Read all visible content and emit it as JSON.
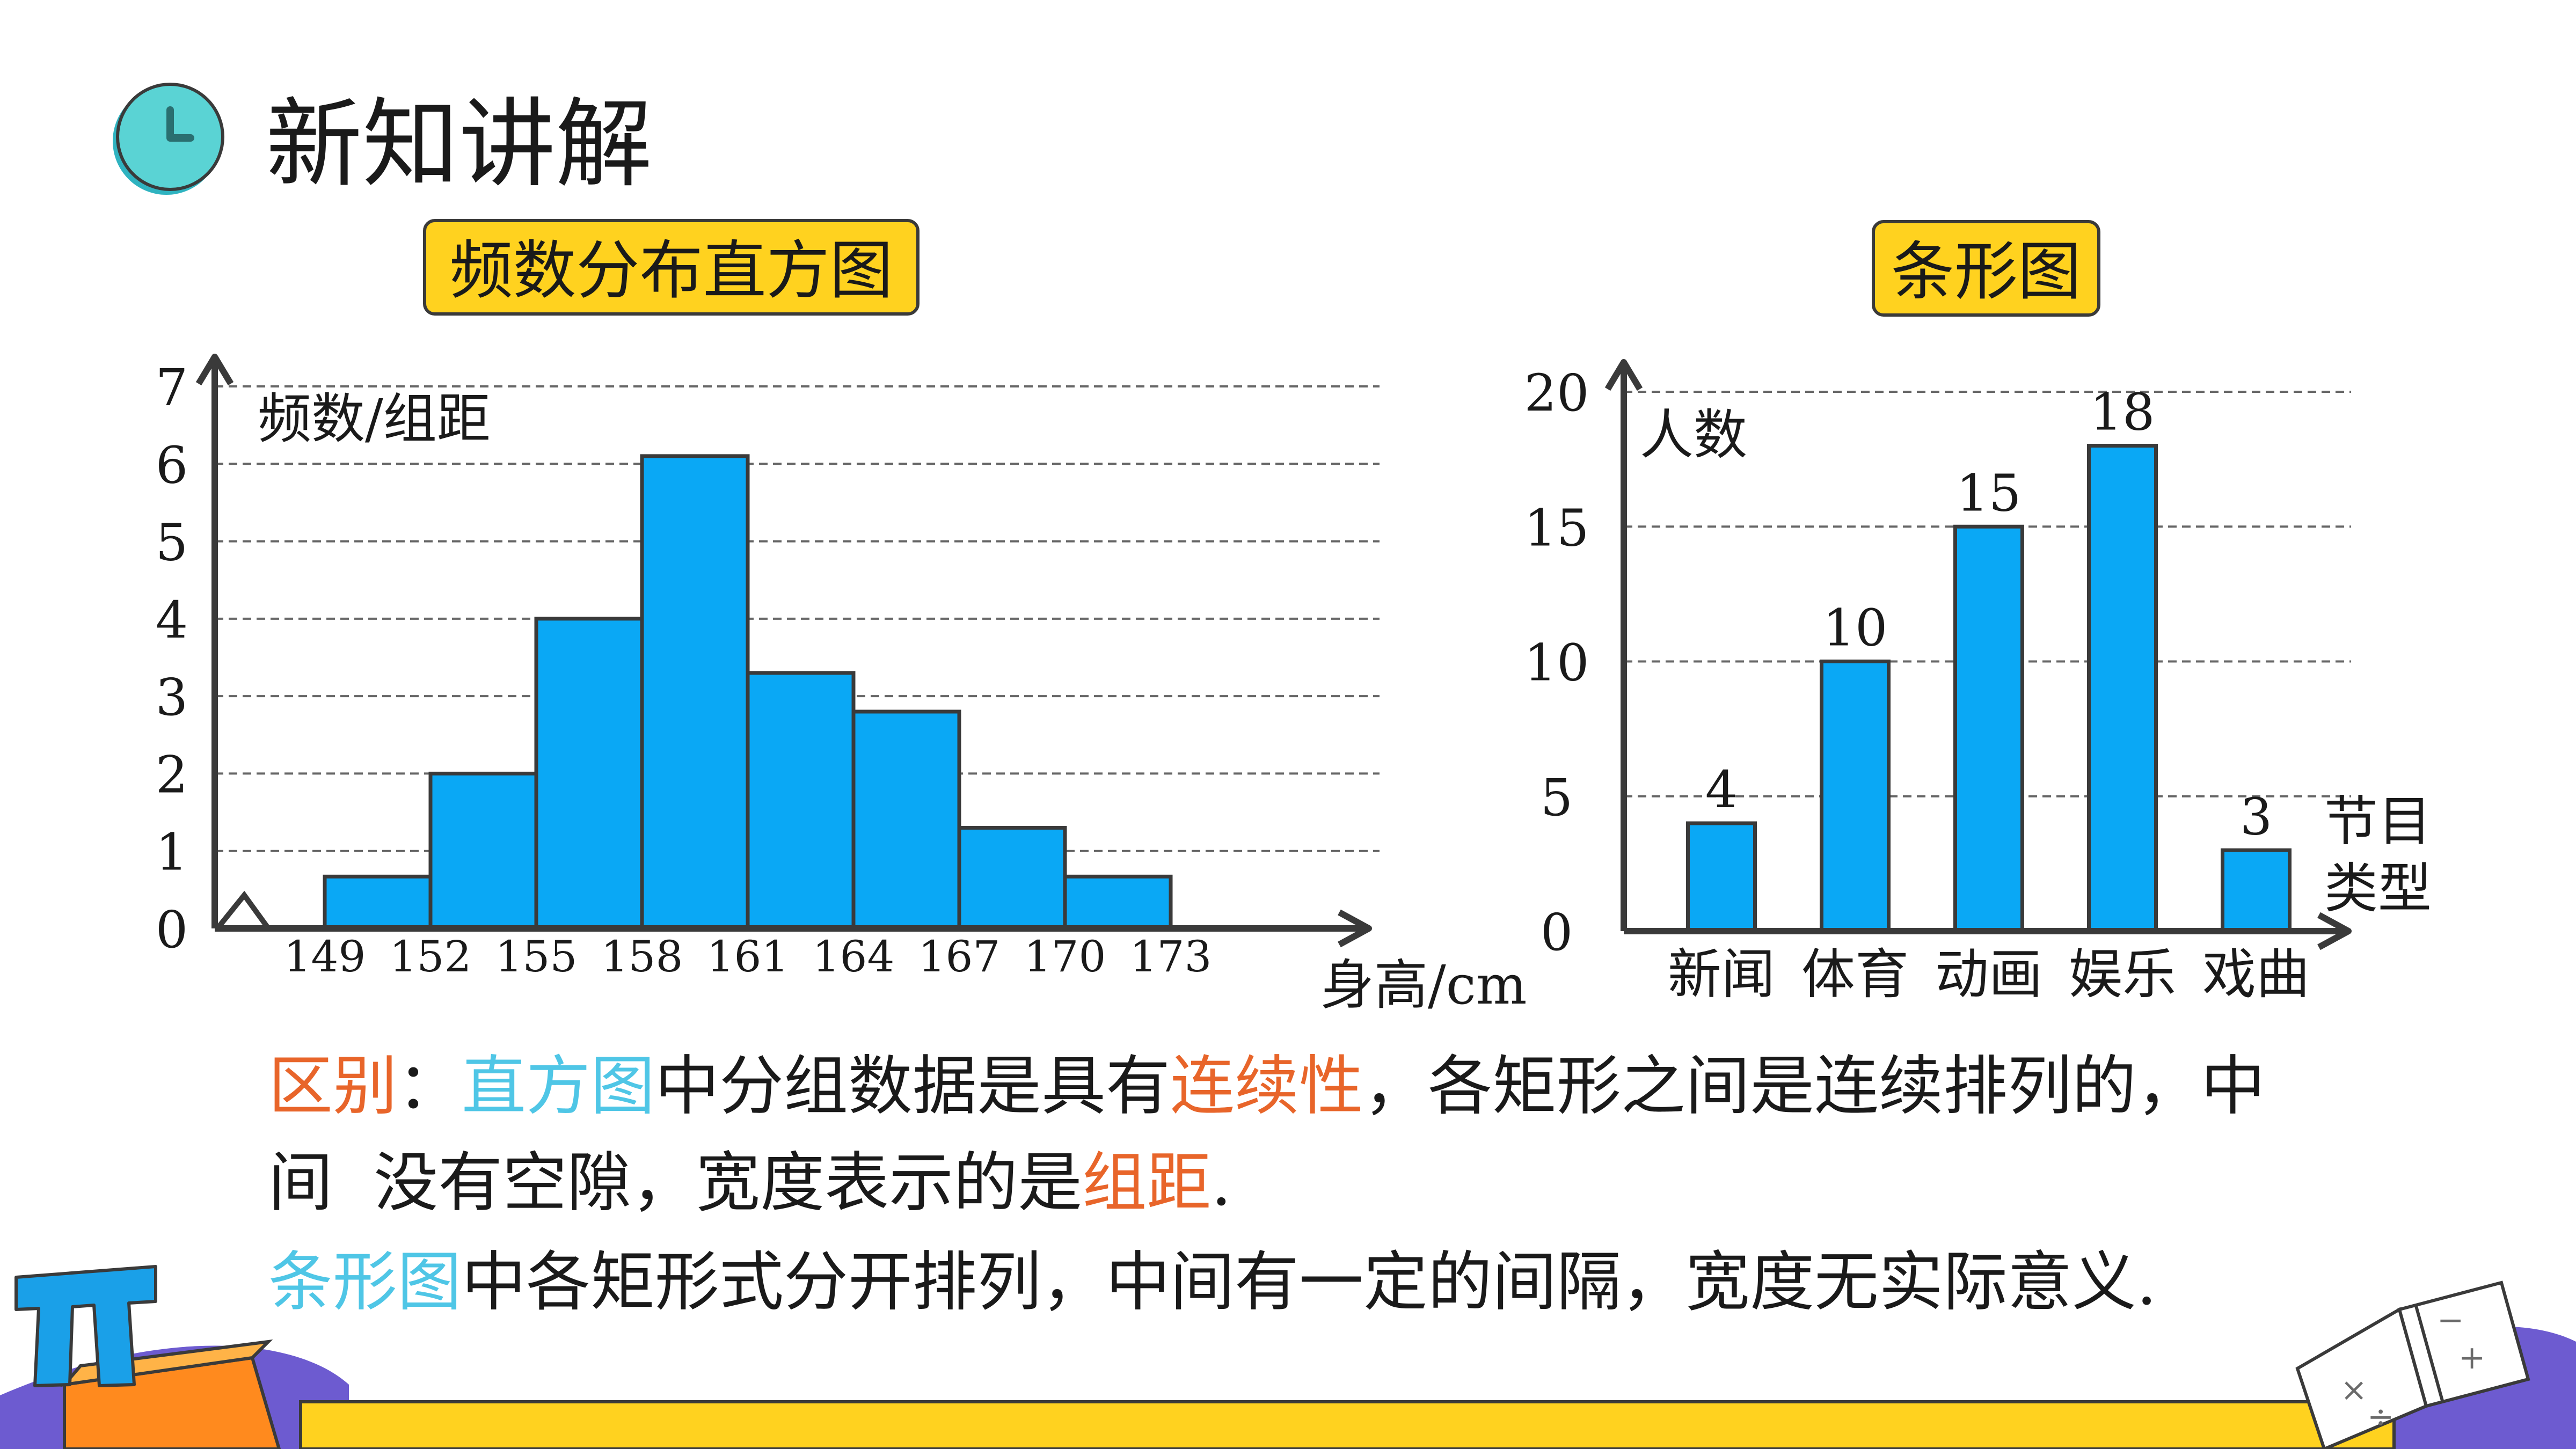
{
  "title": "新知讲解",
  "tags": {
    "histogram": "频数分布直方图",
    "bar": "条形图"
  },
  "chart_data": [
    {
      "type": "bar",
      "subtype": "histogram",
      "ylabel": "频数/组距",
      "xlabel": "身高/cm",
      "yticks": [
        0,
        1,
        2,
        3,
        4,
        5,
        6,
        7
      ],
      "ylim": [
        0,
        7
      ],
      "bin_edges": [
        149,
        152,
        155,
        158,
        161,
        164,
        167,
        170,
        173
      ],
      "values": [
        0.67,
        2,
        4,
        6.1,
        3.3,
        2.8,
        1.3,
        0.67
      ],
      "bar_color": "#0aa8f5",
      "grid": "dashed horizontal",
      "axis_break": true
    },
    {
      "type": "bar",
      "ylabel": "人数",
      "xlabel": [
        "节目",
        "类型"
      ],
      "yticks": [
        0,
        5,
        10,
        15,
        20
      ],
      "ylim": [
        0,
        20
      ],
      "categories": [
        "新闻",
        "体育",
        "动画",
        "娱乐",
        "戏曲"
      ],
      "values": [
        4,
        10,
        15,
        18,
        3
      ],
      "data_labels": [
        "4",
        "10",
        "15",
        "18",
        "3"
      ],
      "bar_color": "#0aa8f5",
      "grid": "dashed horizontal"
    }
  ],
  "text": {
    "line1": {
      "a": "区别",
      "b": "：",
      "c": "直方图",
      "d": "中分组数据是具有",
      "e": "连续性",
      "f": "，各矩形之间是连续排列的，中"
    },
    "line2": {
      "a": "间  没有空隙，宽度表示的是",
      "b": "组距",
      "c": "."
    },
    "line3": {
      "a": "条形图",
      "b": "中各矩形式分开排列，中间有一定的间隔，宽度无实际意义."
    }
  },
  "colors": {
    "accent_yellow": "#ffd21f",
    "orange": "#e8652a",
    "cyan": "#4fc6e6",
    "bar": "#0aa8f5"
  },
  "icons": {
    "title": "clock-icon",
    "left_corner": "pi-icon",
    "right_corner": "book-icon"
  }
}
